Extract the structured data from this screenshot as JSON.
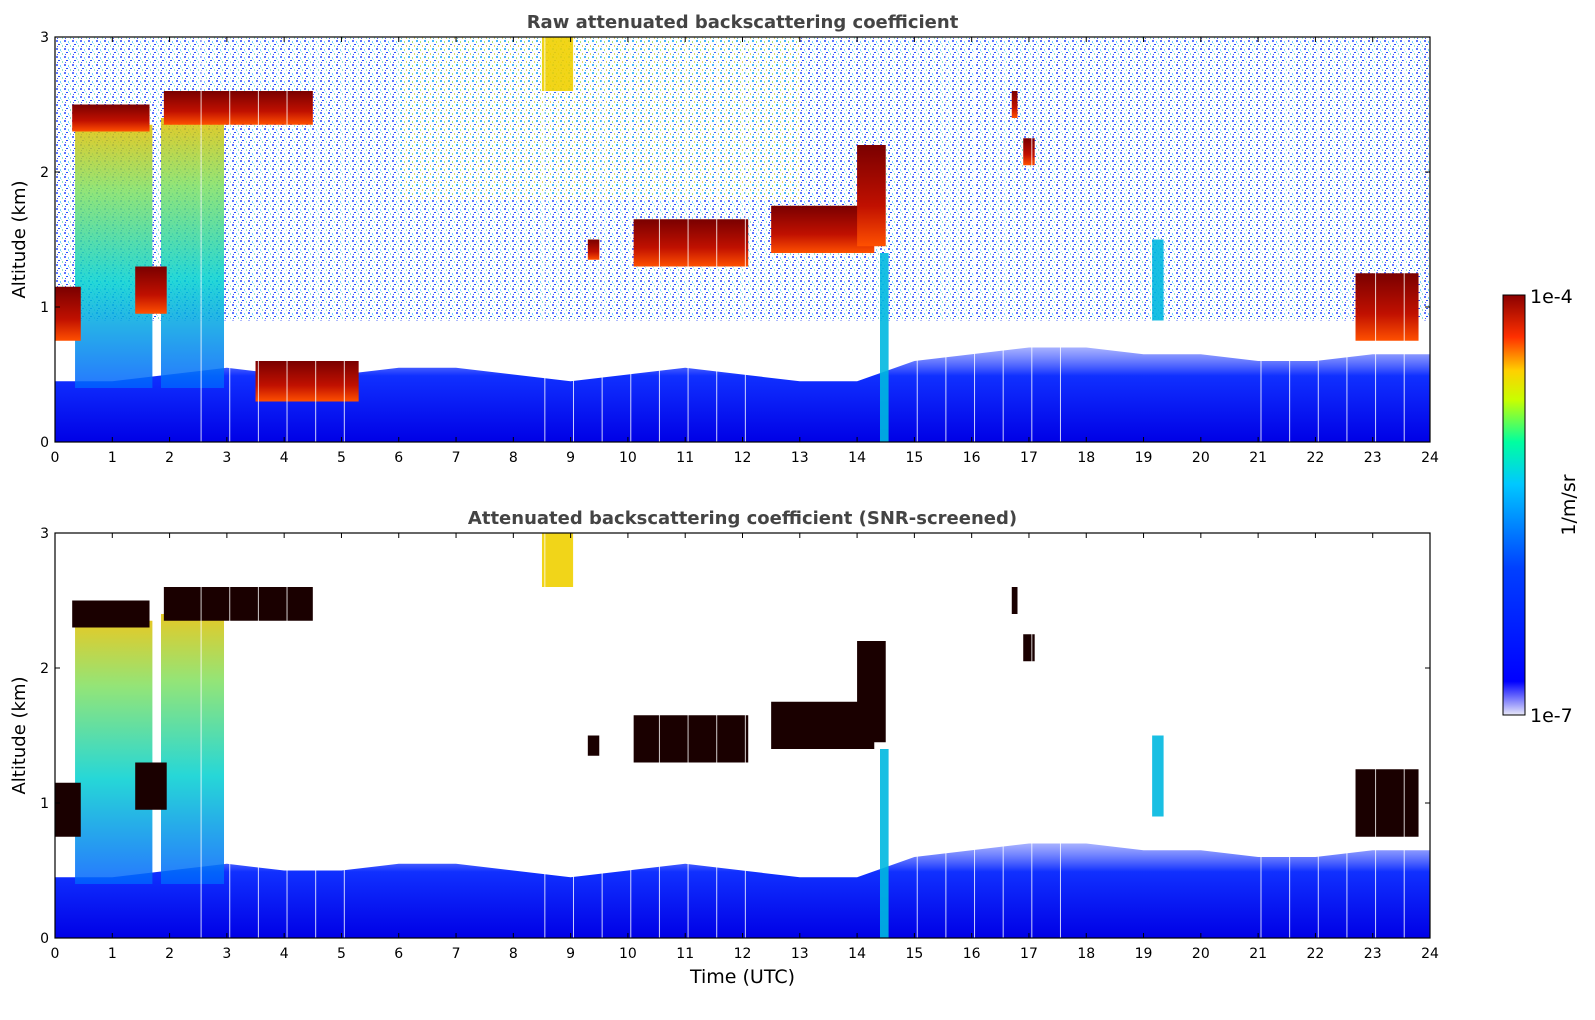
{
  "chart_data": [
    {
      "type": "heatmap",
      "title": "Raw attenuated backscattering coefficient",
      "xlabel": "",
      "ylabel": "Altitude (km)",
      "xlim": [
        0,
        24
      ],
      "ylim": [
        0,
        3
      ],
      "xticks": [
        "0",
        "1",
        "2",
        "3",
        "4",
        "5",
        "6",
        "7",
        "8",
        "9",
        "10",
        "11",
        "12",
        "13",
        "14",
        "15",
        "16",
        "17",
        "18",
        "19",
        "20",
        "21",
        "22",
        "23",
        "24"
      ],
      "yticks": [
        "0",
        "1",
        "2",
        "3"
      ],
      "cloud_layers": [
        {
          "t0": 0.0,
          "t1": 0.45,
          "z0": 0.75,
          "z1": 1.15
        },
        {
          "t0": 0.3,
          "t1": 1.65,
          "z0": 2.3,
          "z1": 2.5
        },
        {
          "t0": 1.4,
          "t1": 1.95,
          "z0": 0.95,
          "z1": 1.3
        },
        {
          "t0": 1.9,
          "t1": 4.5,
          "z0": 2.35,
          "z1": 2.6
        },
        {
          "t0": 3.5,
          "t1": 5.3,
          "z0": 0.3,
          "z1": 0.6
        },
        {
          "t0": 9.3,
          "t1": 9.5,
          "z0": 1.35,
          "z1": 1.5
        },
        {
          "t0": 10.1,
          "t1": 12.1,
          "z0": 1.3,
          "z1": 1.65
        },
        {
          "t0": 12.5,
          "t1": 14.3,
          "z0": 1.4,
          "z1": 1.75
        },
        {
          "t0": 14.0,
          "t1": 14.5,
          "z0": 1.45,
          "z1": 2.2
        },
        {
          "t0": 16.7,
          "t1": 16.8,
          "z0": 2.4,
          "z1": 2.6
        },
        {
          "t0": 16.9,
          "t1": 17.1,
          "z0": 2.05,
          "z1": 2.25
        },
        {
          "t0": 22.7,
          "t1": 23.8,
          "z0": 0.75,
          "z1": 1.25
        }
      ],
      "aerosol_layer_top_km": [
        0.45,
        0.45,
        0.5,
        0.55,
        0.5,
        0.5,
        0.55,
        0.55,
        0.5,
        0.45,
        0.5,
        0.55,
        0.5,
        0.45,
        0.45,
        0.6,
        0.65,
        0.7,
        0.7,
        0.65,
        0.65,
        0.6,
        0.6,
        0.65,
        0.65
      ],
      "precipitation_columns": [
        {
          "t0": 14.4,
          "t1": 14.55,
          "z0": 0.0,
          "z1": 1.4
        },
        {
          "t0": 19.15,
          "t1": 19.35,
          "z0": 0.9,
          "z1": 1.5
        },
        {
          "t0": 8.5,
          "t1": 9.05,
          "z0": 2.6,
          "z1": 3.0
        }
      ]
    },
    {
      "type": "heatmap",
      "title": "Attenuated backscattering coefficient (SNR-screened)",
      "xlabel": "Time (UTC)",
      "ylabel": "Altitude (km)",
      "xlim": [
        0,
        24
      ],
      "ylim": [
        0,
        3
      ],
      "xticks": [
        "0",
        "1",
        "2",
        "3",
        "4",
        "5",
        "6",
        "7",
        "8",
        "9",
        "10",
        "11",
        "12",
        "13",
        "14",
        "15",
        "16",
        "17",
        "18",
        "19",
        "20",
        "21",
        "22",
        "23",
        "24"
      ],
      "yticks": [
        "0",
        "1",
        "2",
        "3"
      ],
      "cloud_layers": [
        {
          "t0": 0.0,
          "t1": 0.45,
          "z0": 0.75,
          "z1": 1.15
        },
        {
          "t0": 0.3,
          "t1": 1.65,
          "z0": 2.3,
          "z1": 2.5
        },
        {
          "t0": 1.4,
          "t1": 1.95,
          "z0": 0.95,
          "z1": 1.3
        },
        {
          "t0": 1.9,
          "t1": 4.5,
          "z0": 2.35,
          "z1": 2.6
        },
        {
          "t0": 9.3,
          "t1": 9.5,
          "z0": 1.35,
          "z1": 1.5
        },
        {
          "t0": 10.1,
          "t1": 12.1,
          "z0": 1.3,
          "z1": 1.65
        },
        {
          "t0": 12.5,
          "t1": 14.3,
          "z0": 1.4,
          "z1": 1.75
        },
        {
          "t0": 14.0,
          "t1": 14.5,
          "z0": 1.45,
          "z1": 2.2
        },
        {
          "t0": 16.7,
          "t1": 16.8,
          "z0": 2.4,
          "z1": 2.6
        },
        {
          "t0": 16.9,
          "t1": 17.1,
          "z0": 2.05,
          "z1": 2.25
        },
        {
          "t0": 22.7,
          "t1": 23.8,
          "z0": 0.75,
          "z1": 1.25
        }
      ],
      "aerosol_layer_top_km": [
        0.45,
        0.45,
        0.5,
        0.55,
        0.5,
        0.5,
        0.55,
        0.55,
        0.5,
        0.45,
        0.5,
        0.55,
        0.5,
        0.45,
        0.45,
        0.6,
        0.65,
        0.7,
        0.7,
        0.65,
        0.65,
        0.6,
        0.6,
        0.65,
        0.65
      ],
      "precipitation_columns": [
        {
          "t0": 14.4,
          "t1": 14.55,
          "z0": 0.0,
          "z1": 1.4
        },
        {
          "t0": 19.15,
          "t1": 19.35,
          "z0": 0.9,
          "z1": 1.5
        },
        {
          "t0": 8.5,
          "t1": 9.05,
          "z0": 2.6,
          "z1": 3.0
        }
      ]
    }
  ],
  "colorbar": {
    "label": "1/m/sr",
    "max_label": "1e-4",
    "min_label": "1e-7",
    "scale": "log",
    "colormap": "jet",
    "colors": [
      "#e8e8f8",
      "#0000ff",
      "#00c8ff",
      "#00ffa0",
      "#c8ff00",
      "#ffd000",
      "#ff3000",
      "#8b0000"
    ]
  }
}
